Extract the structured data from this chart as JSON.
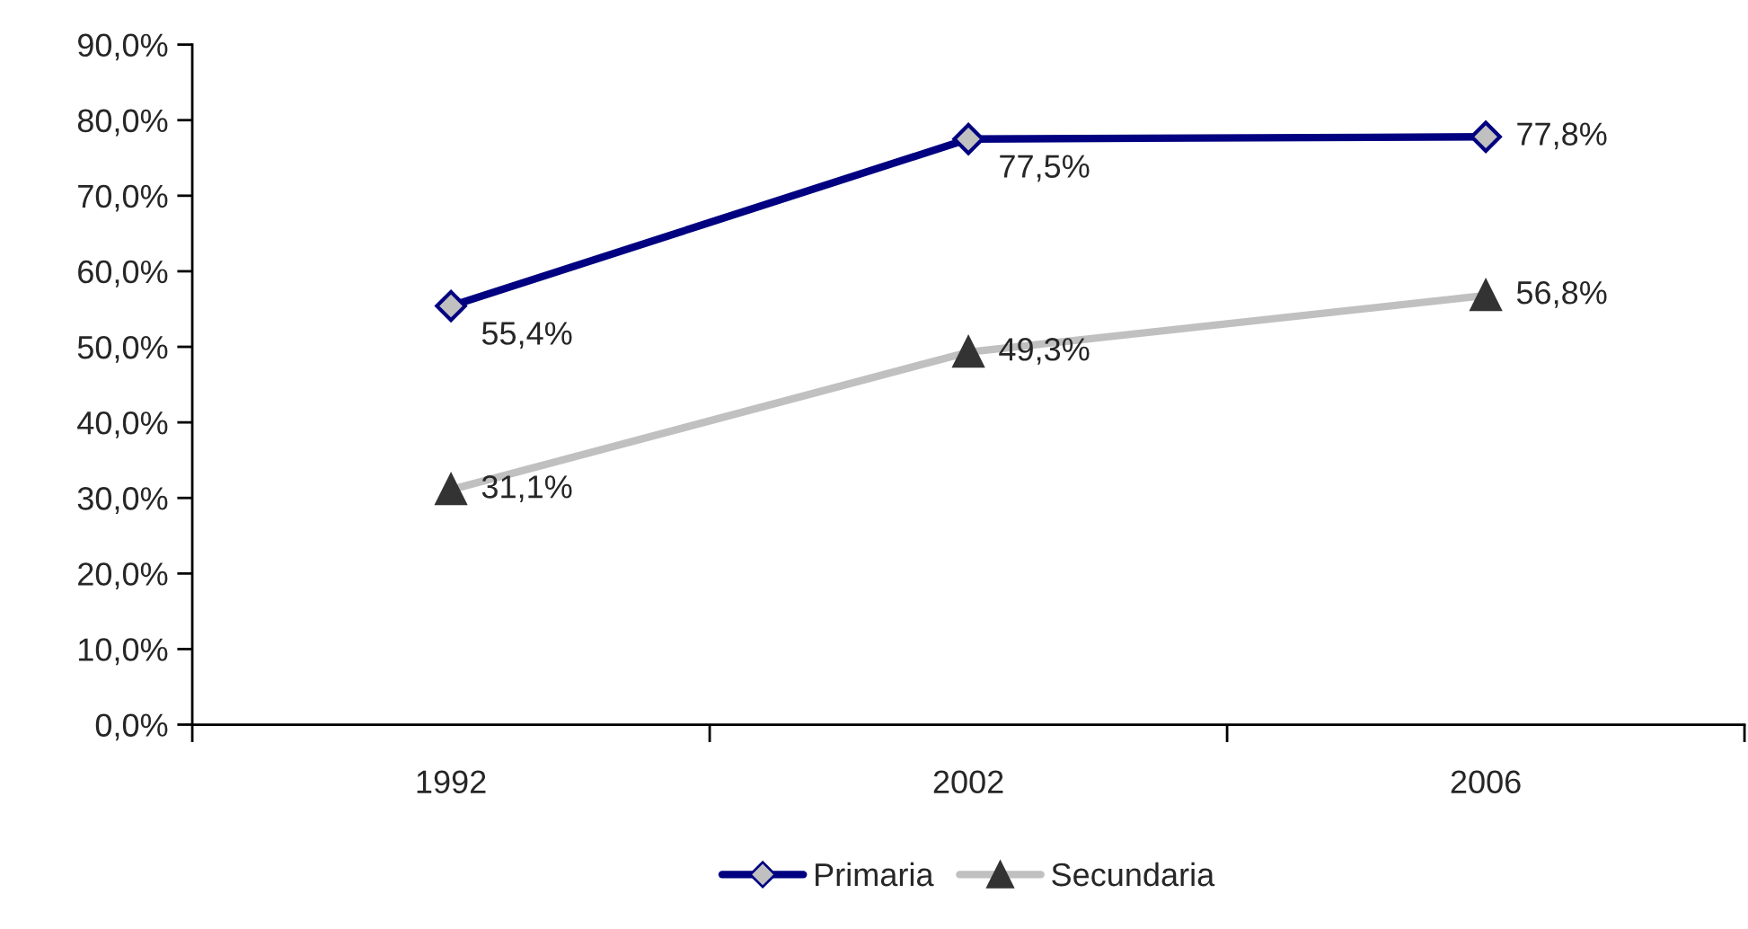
{
  "chart_data": {
    "type": "line",
    "categories": [
      "1992",
      "2002",
      "2006"
    ],
    "series": [
      {
        "name": "Primaria",
        "color": "#000080",
        "marker": "diamond",
        "colors": [
          "#c0c0c0",
          "#c0c0c0",
          "#c0c0c0"
        ],
        "values": [
          55.4,
          77.5,
          77.8
        ],
        "value_labels": [
          "55,4%",
          "77,5%",
          "77,8%"
        ]
      },
      {
        "name": "Secundaria",
        "color": "#c0c0c0",
        "marker": "triangle",
        "colors": [
          "#333333",
          "#333333",
          "#333333"
        ],
        "values": [
          31.1,
          49.3,
          56.8
        ],
        "value_labels": [
          "31,1%",
          "49,3%",
          "56,8%"
        ]
      }
    ],
    "ylim": [
      0,
      90
    ],
    "yticks": [
      {
        "value": 0,
        "label": "0,0%"
      },
      {
        "value": 10,
        "label": "10,0%"
      },
      {
        "value": 20,
        "label": "20,0%"
      },
      {
        "value": 30,
        "label": "30,0%"
      },
      {
        "value": 40,
        "label": "40,0%"
      },
      {
        "value": 50,
        "label": "50,0%"
      },
      {
        "value": 60,
        "label": "60,0%"
      },
      {
        "value": 70,
        "label": "70,0%"
      },
      {
        "value": 80,
        "label": "80,0%"
      },
      {
        "value": 90,
        "label": "90,0%"
      }
    ],
    "grid": false,
    "legend": "bottom"
  }
}
